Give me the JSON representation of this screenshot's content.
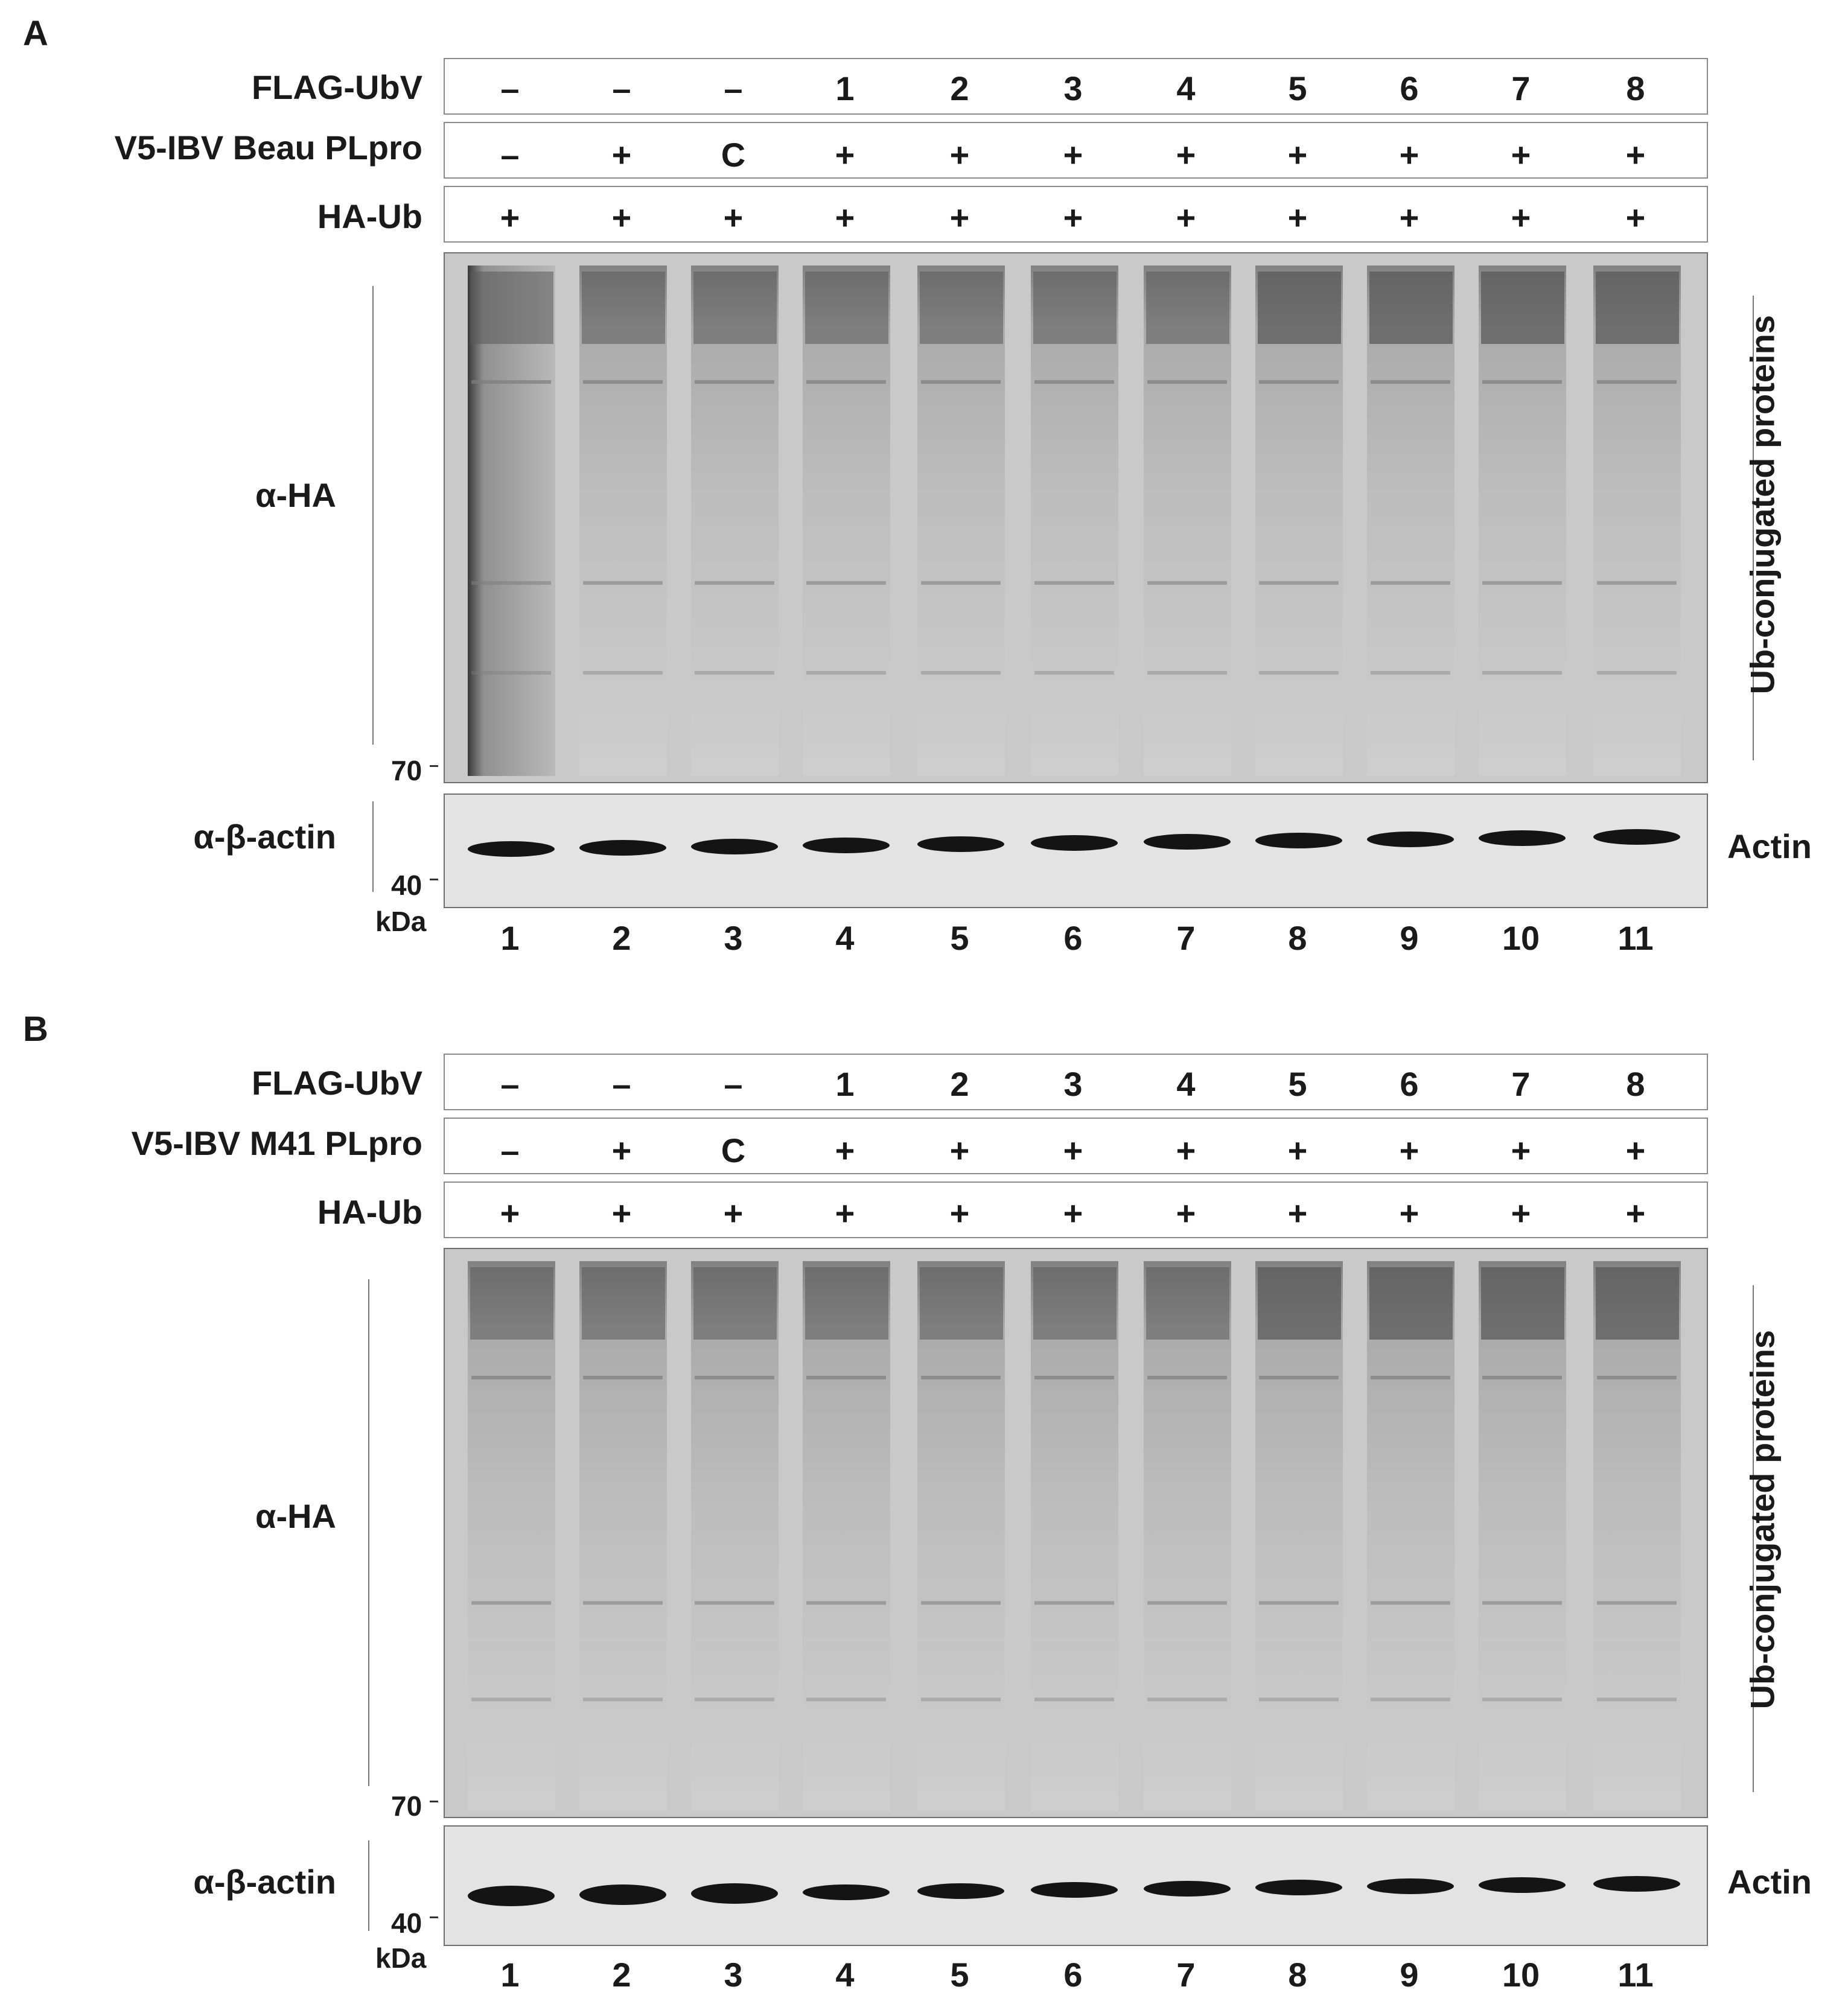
{
  "panels": [
    {
      "letter": "A",
      "rows": [
        {
          "label": "FLAG-UbV",
          "values": [
            "–",
            "–",
            "–",
            "1",
            "2",
            "3",
            "4",
            "5",
            "6",
            "7",
            "8"
          ]
        },
        {
          "label": "V5-IBV Beau PLpro",
          "values": [
            "–",
            "+",
            "C",
            "+",
            "+",
            "+",
            "+",
            "+",
            "+",
            "+",
            "+"
          ]
        },
        {
          "label": "HA-Ub",
          "values": [
            "+",
            "+",
            "+",
            "+",
            "+",
            "+",
            "+",
            "+",
            "+",
            "+",
            "+"
          ]
        }
      ],
      "blot_ha": {
        "antibody": "α-HA",
        "marker": "70",
        "side_label": "Ub-conjugated proteins"
      },
      "blot_actin": {
        "antibody": "α-β-actin",
        "marker": "40",
        "unit": "kDa",
        "side_label": "Actin"
      },
      "lanes": [
        "1",
        "2",
        "3",
        "4",
        "5",
        "6",
        "7",
        "8",
        "9",
        "10",
        "11"
      ]
    },
    {
      "letter": "B",
      "rows": [
        {
          "label": "FLAG-UbV",
          "values": [
            "–",
            "–",
            "–",
            "1",
            "2",
            "3",
            "4",
            "5",
            "6",
            "7",
            "8"
          ]
        },
        {
          "label": "V5-IBV M41 PLpro",
          "values": [
            "–",
            "+",
            "C",
            "+",
            "+",
            "+",
            "+",
            "+",
            "+",
            "+",
            "+"
          ]
        },
        {
          "label": "HA-Ub",
          "values": [
            "+",
            "+",
            "+",
            "+",
            "+",
            "+",
            "+",
            "+",
            "+",
            "+",
            "+"
          ]
        }
      ],
      "blot_ha": {
        "antibody": "α-HA",
        "marker": "70",
        "side_label": "Ub-conjugated proteins"
      },
      "blot_actin": {
        "antibody": "α-β-actin",
        "marker": "40",
        "unit": "kDa",
        "side_label": "Actin"
      },
      "lanes": [
        "1",
        "2",
        "3",
        "4",
        "5",
        "6",
        "7",
        "8",
        "9",
        "10",
        "11"
      ]
    }
  ]
}
